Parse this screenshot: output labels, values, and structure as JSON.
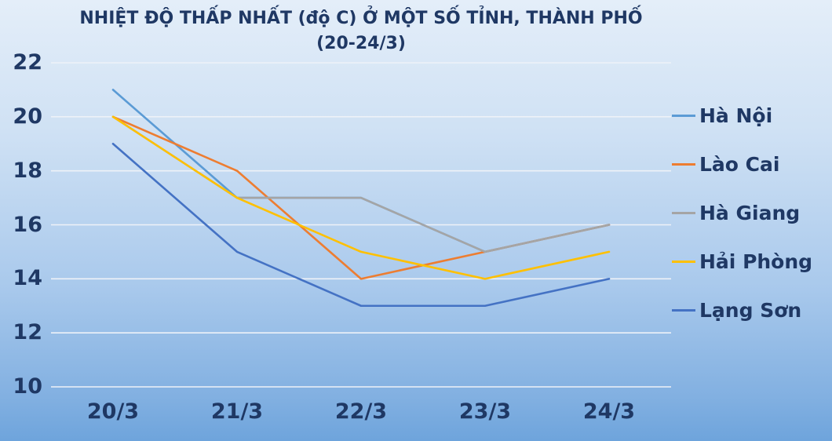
{
  "title": {
    "line1": "NHIỆT ĐỘ THẤP NHẤT (độ C) Ở MỘT SỐ TỈNH, THÀNH PHỐ",
    "line2": "(20-24/3)"
  },
  "chart_data": {
    "type": "line",
    "categories": [
      "20/3",
      "21/3",
      "22/3",
      "23/3",
      "24/3"
    ],
    "series": [
      {
        "name": "Hà Nội",
        "color": "#5B9BD5",
        "values": [
          21,
          17,
          17,
          15,
          16
        ]
      },
      {
        "name": "Lào Cai",
        "color": "#ED7D31",
        "values": [
          20,
          18,
          14,
          15,
          16
        ]
      },
      {
        "name": "Hà Giang",
        "color": "#A5A5A5",
        "values": [
          20,
          17,
          17,
          15,
          16
        ]
      },
      {
        "name": "Hải Phòng",
        "color": "#FFC000",
        "values": [
          20,
          17,
          15,
          14,
          15
        ]
      },
      {
        "name": "Lạng Sơn",
        "color": "#4472C4",
        "values": [
          19,
          15,
          13,
          13,
          14
        ]
      }
    ],
    "ylim": [
      10,
      22
    ],
    "yticks": [
      "22",
      "20",
      "18",
      "16",
      "14",
      "12",
      "10"
    ],
    "ytick_values": [
      22,
      20,
      18,
      16,
      14,
      12,
      10
    ],
    "xlabel": "",
    "ylabel": "",
    "grid": true,
    "legend_position": "right"
  },
  "palette": {
    "text": "#1F3864",
    "grid": "#eef2f8"
  }
}
